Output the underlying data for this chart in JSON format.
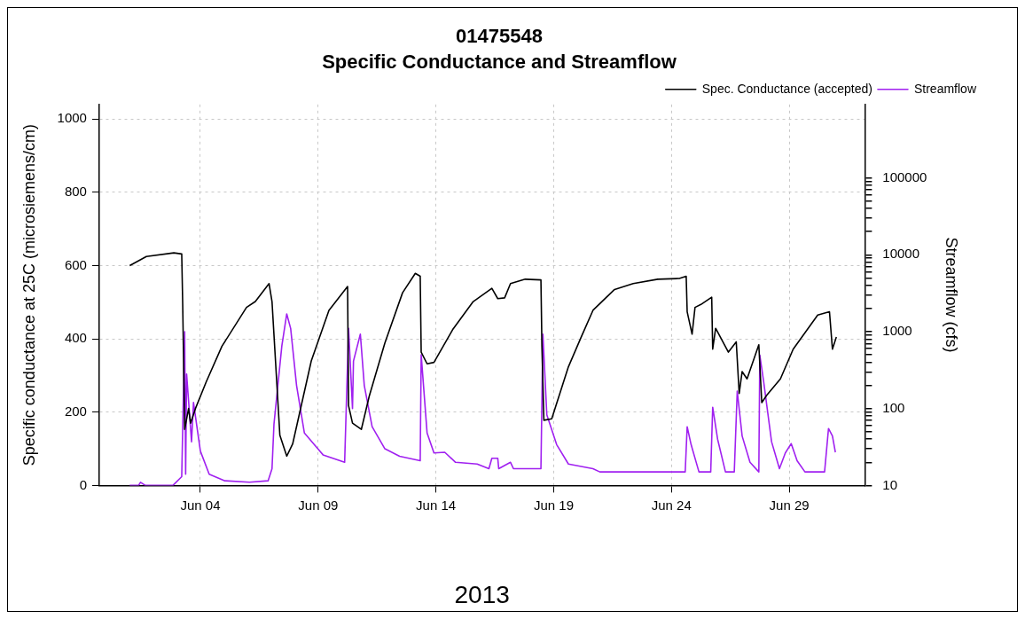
{
  "chart_data": {
    "type": "line",
    "title": "01475548",
    "subtitle": "Specific Conductance and Streamflow",
    "xlabel": "2013",
    "ylabel": "Specific conductance at 25C (microsiemens/cm)",
    "y2label": "Streamflow (cfs)",
    "xlim": [
      "2013-05-30T17:00",
      "2013-07-02T05:00"
    ],
    "xticks": [
      {
        "value": "2013-06-04",
        "label": "Jun 04"
      },
      {
        "value": "2013-06-09",
        "label": "Jun 09"
      },
      {
        "value": "2013-06-14",
        "label": "Jun 14"
      },
      {
        "value": "2013-06-19",
        "label": "Jun 19"
      },
      {
        "value": "2013-06-24",
        "label": "Jun 24"
      },
      {
        "value": "2013-06-29",
        "label": "Jun 29"
      }
    ],
    "ylim": [
      0,
      1040
    ],
    "yticks": [
      0,
      200,
      400,
      600,
      800,
      1000
    ],
    "y2lim": [
      10,
      900000
    ],
    "y2ticks": [
      10,
      {
        "value": 20,
        "label": null
      },
      {
        "value": 30,
        "label": null
      },
      {
        "value": 40,
        "label": null
      },
      {
        "value": 50,
        "label": null
      },
      {
        "value": 60,
        "label": null
      },
      {
        "value": 70,
        "label": null
      },
      {
        "value": 80,
        "label": null
      },
      {
        "value": 90,
        "label": null
      },
      100,
      {
        "value": 200,
        "label": null
      },
      {
        "value": 300,
        "label": null
      },
      {
        "value": 400,
        "label": null
      },
      {
        "value": 500,
        "label": null
      },
      {
        "value": 600,
        "label": null
      },
      {
        "value": 700,
        "label": null
      },
      {
        "value": 800,
        "label": null
      },
      {
        "value": 900,
        "label": null
      },
      1000,
      {
        "value": 2000,
        "label": null
      },
      {
        "value": 3000,
        "label": null
      },
      {
        "value": 4000,
        "label": null
      },
      {
        "value": 5000,
        "label": null
      },
      {
        "value": 6000,
        "label": null
      },
      {
        "value": 7000,
        "label": null
      },
      {
        "value": 8000,
        "label": null
      },
      {
        "value": 9000,
        "label": null
      },
      10000,
      {
        "value": 20000,
        "label": null
      },
      {
        "value": 30000,
        "label": null
      },
      {
        "value": 40000,
        "label": null
      },
      {
        "value": 50000,
        "label": null
      },
      {
        "value": 60000,
        "label": null
      },
      {
        "value": 70000,
        "label": null
      },
      {
        "value": 80000,
        "label": null
      },
      {
        "value": 90000,
        "label": null
      },
      100000
    ],
    "log": "y2",
    "grid": true,
    "legend": "top right",
    "marker": "none",
    "line_style": "solid",
    "series": [
      {
        "name": "Spec. Conductance (accepted)",
        "color": "#000000",
        "x": [
          "2013-06-01T00:00",
          "2013-06-01T17:00",
          "2013-06-02T21:00",
          "2013-06-03T05:00",
          "2013-06-03T06:00",
          "2013-06-03T08:00",
          "2013-06-03T12:00",
          "2013-06-03T14:00",
          "2013-06-03T19:00",
          "2013-06-04T06:00",
          "2013-06-04T22:00",
          "2013-06-05T23:00",
          "2013-06-06T08:00",
          "2013-06-06T22:00",
          "2013-06-07T01:00",
          "2013-06-07T09:00",
          "2013-06-07T16:00",
          "2013-06-07T22:00",
          "2013-06-08T17:00",
          "2013-06-09T11:00",
          "2013-06-10T06:00",
          "2013-06-10T07:00",
          "2013-06-10T11:00",
          "2013-06-10T20:00",
          "2013-06-11T04:00",
          "2013-06-11T20:00",
          "2013-06-12T14:00",
          "2013-06-13T03:00",
          "2013-06-13T08:00",
          "2013-06-13T09:00",
          "2013-06-13T15:00",
          "2013-06-13T22:00",
          "2013-06-14T17:00",
          "2013-06-15T14:00",
          "2013-06-16T09:00",
          "2013-06-16T15:00",
          "2013-06-16T22:00",
          "2013-06-17T04:00",
          "2013-06-17T19:00",
          "2013-06-18T11:00",
          "2013-06-18T12:00",
          "2013-06-18T14:00",
          "2013-06-18T22:00",
          "2013-06-19T15:00",
          "2013-06-20T04:00",
          "2013-06-20T16:00",
          "2013-06-21T14:00",
          "2013-06-22T09:00",
          "2013-06-23T10:00",
          "2013-06-24T08:00",
          "2013-06-24T15:00",
          "2013-06-24T16:00",
          "2013-06-24T21:00",
          "2013-06-25T00:00",
          "2013-06-25T06:00",
          "2013-06-25T17:00",
          "2013-06-25T18:00",
          "2013-06-25T21:00",
          "2013-06-26T10:00",
          "2013-06-26T18:00",
          "2013-06-26T21:00",
          "2013-06-27T00:00",
          "2013-06-27T05:00",
          "2013-06-27T17:00",
          "2013-06-27T20:00",
          "2013-06-28T01:00",
          "2013-06-28T15:00",
          "2013-06-29T04:00",
          "2013-06-30T05:00",
          "2013-06-30T17:00",
          "2013-06-30T20:00",
          "2013-07-01T00:00"
        ],
        "values": [
          600,
          625,
          635,
          632,
          494,
          153,
          210,
          170,
          210,
          283,
          380,
          486,
          502,
          551,
          502,
          137,
          80,
          113,
          340,
          478,
          543,
          218,
          170,
          153,
          243,
          389,
          526,
          579,
          571,
          364,
          332,
          336,
          425,
          502,
          538,
          510,
          512,
          551,
          563,
          561,
          380,
          178,
          182,
          324,
          405,
          478,
          535,
          551,
          563,
          565,
          571,
          474,
          413,
          486,
          494,
          514,
          372,
          429,
          364,
          392,
          251,
          311,
          291,
          384,
          226,
          246,
          291,
          372,
          465,
          474,
          372,
          405
        ]
      },
      {
        "name": "Streamflow",
        "color": "#a020f0",
        "axis": "y2",
        "x": [
          "2013-06-01T00:00",
          "2013-06-01T09:00",
          "2013-06-01T11:00",
          "2013-06-01T16:00",
          "2013-06-02T20:00",
          "2013-06-03T05:00",
          "2013-06-03T08:00",
          "2013-06-03T09:00",
          "2013-06-03T10:00",
          "2013-06-03T15:00",
          "2013-06-03T17:00",
          "2013-06-04T00:00",
          "2013-06-04T09:00",
          "2013-06-05T01:00",
          "2013-06-06T02:00",
          "2013-06-06T21:00",
          "2013-06-07T01:00",
          "2013-06-07T03:00",
          "2013-06-07T11:00",
          "2013-06-07T16:00",
          "2013-06-07T20:00",
          "2013-06-08T02:00",
          "2013-06-08T10:00",
          "2013-06-09T05:00",
          "2013-06-10T03:00",
          "2013-06-10T07:00",
          "2013-06-10T11:00",
          "2013-06-10T12:00",
          "2013-06-10T19:00",
          "2013-06-10T23:00",
          "2013-06-11T07:00",
          "2013-06-11T20:00",
          "2013-06-12T11:00",
          "2013-06-13T08:00",
          "2013-06-13T09:00",
          "2013-06-13T15:00",
          "2013-06-13T22:00",
          "2013-06-14T09:00",
          "2013-06-14T20:00",
          "2013-06-15T18:00",
          "2013-06-16T06:00",
          "2013-06-16T09:00",
          "2013-06-16T15:00",
          "2013-06-16T16:00",
          "2013-06-17T04:00",
          "2013-06-17T07:00",
          "2013-06-18T11:00",
          "2013-06-18T13:00",
          "2013-06-18T17:00",
          "2013-06-19T03:00",
          "2013-06-19T15:00",
          "2013-06-20T16:00",
          "2013-06-20T23:00",
          "2013-06-24T14:00",
          "2013-06-24T16:00",
          "2013-06-24T20:00",
          "2013-06-25T04:00",
          "2013-06-25T16:00",
          "2013-06-25T18:00",
          "2013-06-25T23:00",
          "2013-06-26T07:00",
          "2013-06-26T16:00",
          "2013-06-26T19:00",
          "2013-06-27T00:00",
          "2013-06-27T08:00",
          "2013-06-27T17:00",
          "2013-06-27T18:00",
          "2013-06-27T22:00",
          "2013-06-28T06:00",
          "2013-06-28T14:00",
          "2013-06-28T20:00",
          "2013-06-29T02:00",
          "2013-06-29T08:00",
          "2013-06-29T16:00",
          "2013-06-30T12:00",
          "2013-06-30T16:00",
          "2013-06-30T20:00",
          "2013-06-30T23:00"
        ],
        "values": [
          10,
          10,
          11,
          10,
          10,
          13,
          1000,
          14,
          280,
          37,
          120,
          28,
          14,
          11.5,
          11,
          11.5,
          16.5,
          63,
          650,
          1700,
          1100,
          200,
          48,
          25,
          20,
          1100,
          100,
          415,
          930,
          200,
          58,
          30,
          24,
          21,
          500,
          48,
          26.5,
          27,
          20,
          19,
          16.5,
          22.6,
          22.6,
          16.5,
          20,
          16.5,
          16.5,
          930,
          83,
          34,
          19,
          16.5,
          15,
          15,
          58,
          34,
          15,
          15,
          104,
          40,
          15,
          15,
          169,
          44,
          20,
          15,
          495,
          221,
          37,
          16.5,
          26.5,
          35,
          21,
          15,
          15,
          55,
          44,
          27
        ]
      }
    ]
  }
}
